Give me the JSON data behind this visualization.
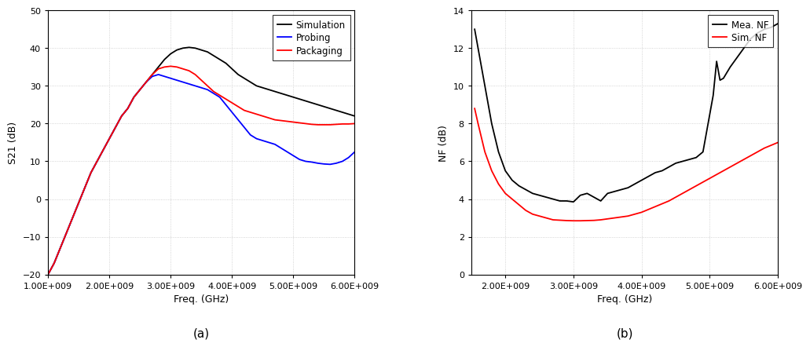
{
  "chart_a": {
    "title": "(a)",
    "xlabel": "Freq. (GHz)",
    "ylabel": "S21 (dB)",
    "xlim": [
      1000000000.0,
      6000000000.0
    ],
    "ylim": [
      -20,
      50
    ],
    "yticks": [
      -20,
      -10,
      0,
      10,
      20,
      30,
      40,
      50
    ],
    "xticks": [
      1000000000.0,
      2000000000.0,
      3000000000.0,
      4000000000.0,
      5000000000.0,
      6000000000.0
    ],
    "simulation": {
      "color": "#000000",
      "label": "Simulation",
      "x": [
        1000000000.0,
        1100000000.0,
        1200000000.0,
        1300000000.0,
        1400000000.0,
        1500000000.0,
        1600000000.0,
        1700000000.0,
        1800000000.0,
        1900000000.0,
        2000000000.0,
        2100000000.0,
        2200000000.0,
        2300000000.0,
        2400000000.0,
        2500000000.0,
        2600000000.0,
        2700000000.0,
        2800000000.0,
        2900000000.0,
        3000000000.0,
        3100000000.0,
        3200000000.0,
        3300000000.0,
        3400000000.0,
        3500000000.0,
        3600000000.0,
        3700000000.0,
        3800000000.0,
        3900000000.0,
        4000000000.0,
        4100000000.0,
        4200000000.0,
        4300000000.0,
        4400000000.0,
        4500000000.0,
        4600000000.0,
        4700000000.0,
        4800000000.0,
        4900000000.0,
        5000000000.0,
        5100000000.0,
        5200000000.0,
        5300000000.0,
        5400000000.0,
        5500000000.0,
        5600000000.0,
        5700000000.0,
        5800000000.0,
        5900000000.0,
        6000000000.0
      ],
      "y": [
        -20,
        -17,
        -13,
        -9,
        -5,
        -1,
        3,
        7,
        10,
        13,
        16,
        19,
        22,
        24,
        27,
        29,
        31,
        33,
        35,
        37,
        38.5,
        39.5,
        40.0,
        40.2,
        40.0,
        39.5,
        39.0,
        38.0,
        37.0,
        36.0,
        34.5,
        33.0,
        32.0,
        31.0,
        30.0,
        29.5,
        29.0,
        28.5,
        28.0,
        27.5,
        27.0,
        26.5,
        26.0,
        25.5,
        25.0,
        24.5,
        24.0,
        23.5,
        23.0,
        22.5,
        22.0
      ]
    },
    "probing": {
      "color": "#0000ff",
      "label": "Probing",
      "x": [
        1000000000.0,
        1100000000.0,
        1200000000.0,
        1300000000.0,
        1400000000.0,
        1500000000.0,
        1600000000.0,
        1700000000.0,
        1800000000.0,
        1900000000.0,
        2000000000.0,
        2100000000.0,
        2200000000.0,
        2300000000.0,
        2400000000.0,
        2500000000.0,
        2600000000.0,
        2700000000.0,
        2800000000.0,
        2900000000.0,
        3000000000.0,
        3100000000.0,
        3200000000.0,
        3300000000.0,
        3400000000.0,
        3500000000.0,
        3600000000.0,
        3700000000.0,
        3800000000.0,
        3900000000.0,
        4000000000.0,
        4100000000.0,
        4200000000.0,
        4300000000.0,
        4400000000.0,
        4500000000.0,
        4600000000.0,
        4700000000.0,
        4800000000.0,
        4900000000.0,
        5000000000.0,
        5100000000.0,
        5200000000.0,
        5300000000.0,
        5400000000.0,
        5500000000.0,
        5600000000.0,
        5700000000.0,
        5800000000.0,
        5900000000.0,
        6000000000.0
      ],
      "y": [
        -20,
        -17,
        -13,
        -9,
        -5,
        -1,
        3,
        7,
        10,
        13,
        16,
        19,
        22,
        24,
        27,
        29,
        31,
        32.5,
        33.0,
        32.5,
        32.0,
        31.5,
        31.0,
        30.5,
        30.0,
        29.5,
        29.0,
        28.0,
        27.0,
        25.0,
        23.0,
        21.0,
        19.0,
        17.0,
        16.0,
        15.5,
        15.0,
        14.5,
        13.5,
        12.5,
        11.5,
        10.5,
        10.0,
        9.8,
        9.5,
        9.3,
        9.2,
        9.5,
        10.0,
        11.0,
        12.5
      ]
    },
    "packaging": {
      "color": "#ff0000",
      "label": "Packaging",
      "x": [
        1000000000.0,
        1100000000.0,
        1200000000.0,
        1300000000.0,
        1400000000.0,
        1500000000.0,
        1600000000.0,
        1700000000.0,
        1800000000.0,
        1900000000.0,
        2000000000.0,
        2100000000.0,
        2200000000.0,
        2300000000.0,
        2400000000.0,
        2500000000.0,
        2600000000.0,
        2700000000.0,
        2800000000.0,
        2900000000.0,
        3000000000.0,
        3100000000.0,
        3200000000.0,
        3300000000.0,
        3400000000.0,
        3500000000.0,
        3600000000.0,
        3700000000.0,
        3800000000.0,
        3900000000.0,
        4000000000.0,
        4100000000.0,
        4200000000.0,
        4300000000.0,
        4400000000.0,
        4500000000.0,
        4600000000.0,
        4700000000.0,
        4800000000.0,
        4900000000.0,
        5000000000.0,
        5100000000.0,
        5200000000.0,
        5300000000.0,
        5400000000.0,
        5500000000.0,
        5600000000.0,
        5700000000.0,
        5800000000.0,
        5900000000.0,
        6000000000.0
      ],
      "y": [
        -20,
        -17,
        -13,
        -9,
        -5,
        -1,
        3,
        7,
        10,
        13,
        16,
        19,
        22,
        24,
        27,
        29,
        31,
        33,
        34.5,
        35.0,
        35.2,
        35.0,
        34.5,
        34.0,
        33.0,
        31.5,
        30.0,
        28.5,
        27.5,
        26.5,
        25.5,
        24.5,
        23.5,
        23.0,
        22.5,
        22.0,
        21.5,
        21.0,
        20.8,
        20.6,
        20.4,
        20.2,
        20.0,
        19.8,
        19.7,
        19.7,
        19.7,
        19.8,
        19.9,
        19.9,
        20.0
      ]
    }
  },
  "chart_b": {
    "title": "(b)",
    "xlabel": "Freq. (GHz)",
    "ylabel": "NF (dB)",
    "xlim": [
      1500000000.0,
      6000000000.0
    ],
    "ylim": [
      0,
      14
    ],
    "yticks": [
      0,
      2,
      4,
      6,
      8,
      10,
      12,
      14
    ],
    "xticks": [
      2000000000.0,
      3000000000.0,
      4000000000.0,
      5000000000.0,
      6000000000.0
    ],
    "mea_nf": {
      "color": "#000000",
      "label": "Mea. NF",
      "x": [
        1550000000.0,
        1600000000.0,
        1700000000.0,
        1800000000.0,
        1900000000.0,
        2000000000.0,
        2100000000.0,
        2200000000.0,
        2300000000.0,
        2400000000.0,
        2500000000.0,
        2600000000.0,
        2700000000.0,
        2800000000.0,
        2900000000.0,
        3000000000.0,
        3100000000.0,
        3200000000.0,
        3300000000.0,
        3400000000.0,
        3500000000.0,
        3600000000.0,
        3700000000.0,
        3800000000.0,
        3900000000.0,
        4000000000.0,
        4100000000.0,
        4200000000.0,
        4300000000.0,
        4400000000.0,
        4500000000.0,
        4600000000.0,
        4700000000.0,
        4800000000.0,
        4900000000.0,
        5000000000.0,
        5050000000.0,
        5100000000.0,
        5150000000.0,
        5200000000.0,
        5300000000.0,
        5400000000.0,
        5500000000.0,
        5600000000.0,
        5700000000.0,
        5800000000.0,
        5900000000.0,
        6000000000.0
      ],
      "y": [
        13.0,
        12.0,
        10.0,
        8.0,
        6.5,
        5.5,
        5.0,
        4.7,
        4.5,
        4.3,
        4.2,
        4.1,
        4.0,
        3.9,
        3.9,
        3.85,
        4.2,
        4.3,
        4.1,
        3.9,
        4.3,
        4.4,
        4.5,
        4.6,
        4.8,
        5.0,
        5.2,
        5.4,
        5.5,
        5.7,
        5.9,
        6.0,
        6.1,
        6.2,
        6.5,
        8.5,
        9.5,
        11.3,
        10.3,
        10.4,
        11.0,
        11.5,
        12.0,
        12.5,
        12.8,
        13.0,
        13.1,
        13.3
      ]
    },
    "sim_nf": {
      "color": "#ff0000",
      "label": "Sim. NF",
      "x": [
        1550000000.0,
        1600000000.0,
        1700000000.0,
        1800000000.0,
        1900000000.0,
        2000000000.0,
        2100000000.0,
        2200000000.0,
        2300000000.0,
        2400000000.0,
        2500000000.0,
        2600000000.0,
        2700000000.0,
        2800000000.0,
        2900000000.0,
        3000000000.0,
        3100000000.0,
        3200000000.0,
        3300000000.0,
        3400000000.0,
        3500000000.0,
        3600000000.0,
        3700000000.0,
        3800000000.0,
        3900000000.0,
        4000000000.0,
        4100000000.0,
        4200000000.0,
        4300000000.0,
        4400000000.0,
        4500000000.0,
        4600000000.0,
        4700000000.0,
        4800000000.0,
        4900000000.0,
        5000000000.0,
        5100000000.0,
        5200000000.0,
        5300000000.0,
        5400000000.0,
        5500000000.0,
        5600000000.0,
        5700000000.0,
        5800000000.0,
        5900000000.0,
        6000000000.0
      ],
      "y": [
        8.8,
        8.0,
        6.5,
        5.5,
        4.8,
        4.3,
        4.0,
        3.7,
        3.4,
        3.2,
        3.1,
        3.0,
        2.9,
        2.88,
        2.86,
        2.85,
        2.85,
        2.86,
        2.87,
        2.9,
        2.95,
        3.0,
        3.05,
        3.1,
        3.2,
        3.3,
        3.45,
        3.6,
        3.75,
        3.9,
        4.1,
        4.3,
        4.5,
        4.7,
        4.9,
        5.1,
        5.3,
        5.5,
        5.7,
        5.9,
        6.1,
        6.3,
        6.5,
        6.7,
        6.85,
        7.0
      ]
    }
  },
  "background_color": "#ffffff",
  "grid_color": "#c8c8c8",
  "grid_style": ":",
  "font_size_label": 9,
  "font_size_tick": 8,
  "font_size_title": 11,
  "font_size_legend": 8.5,
  "linewidth": 1.3
}
